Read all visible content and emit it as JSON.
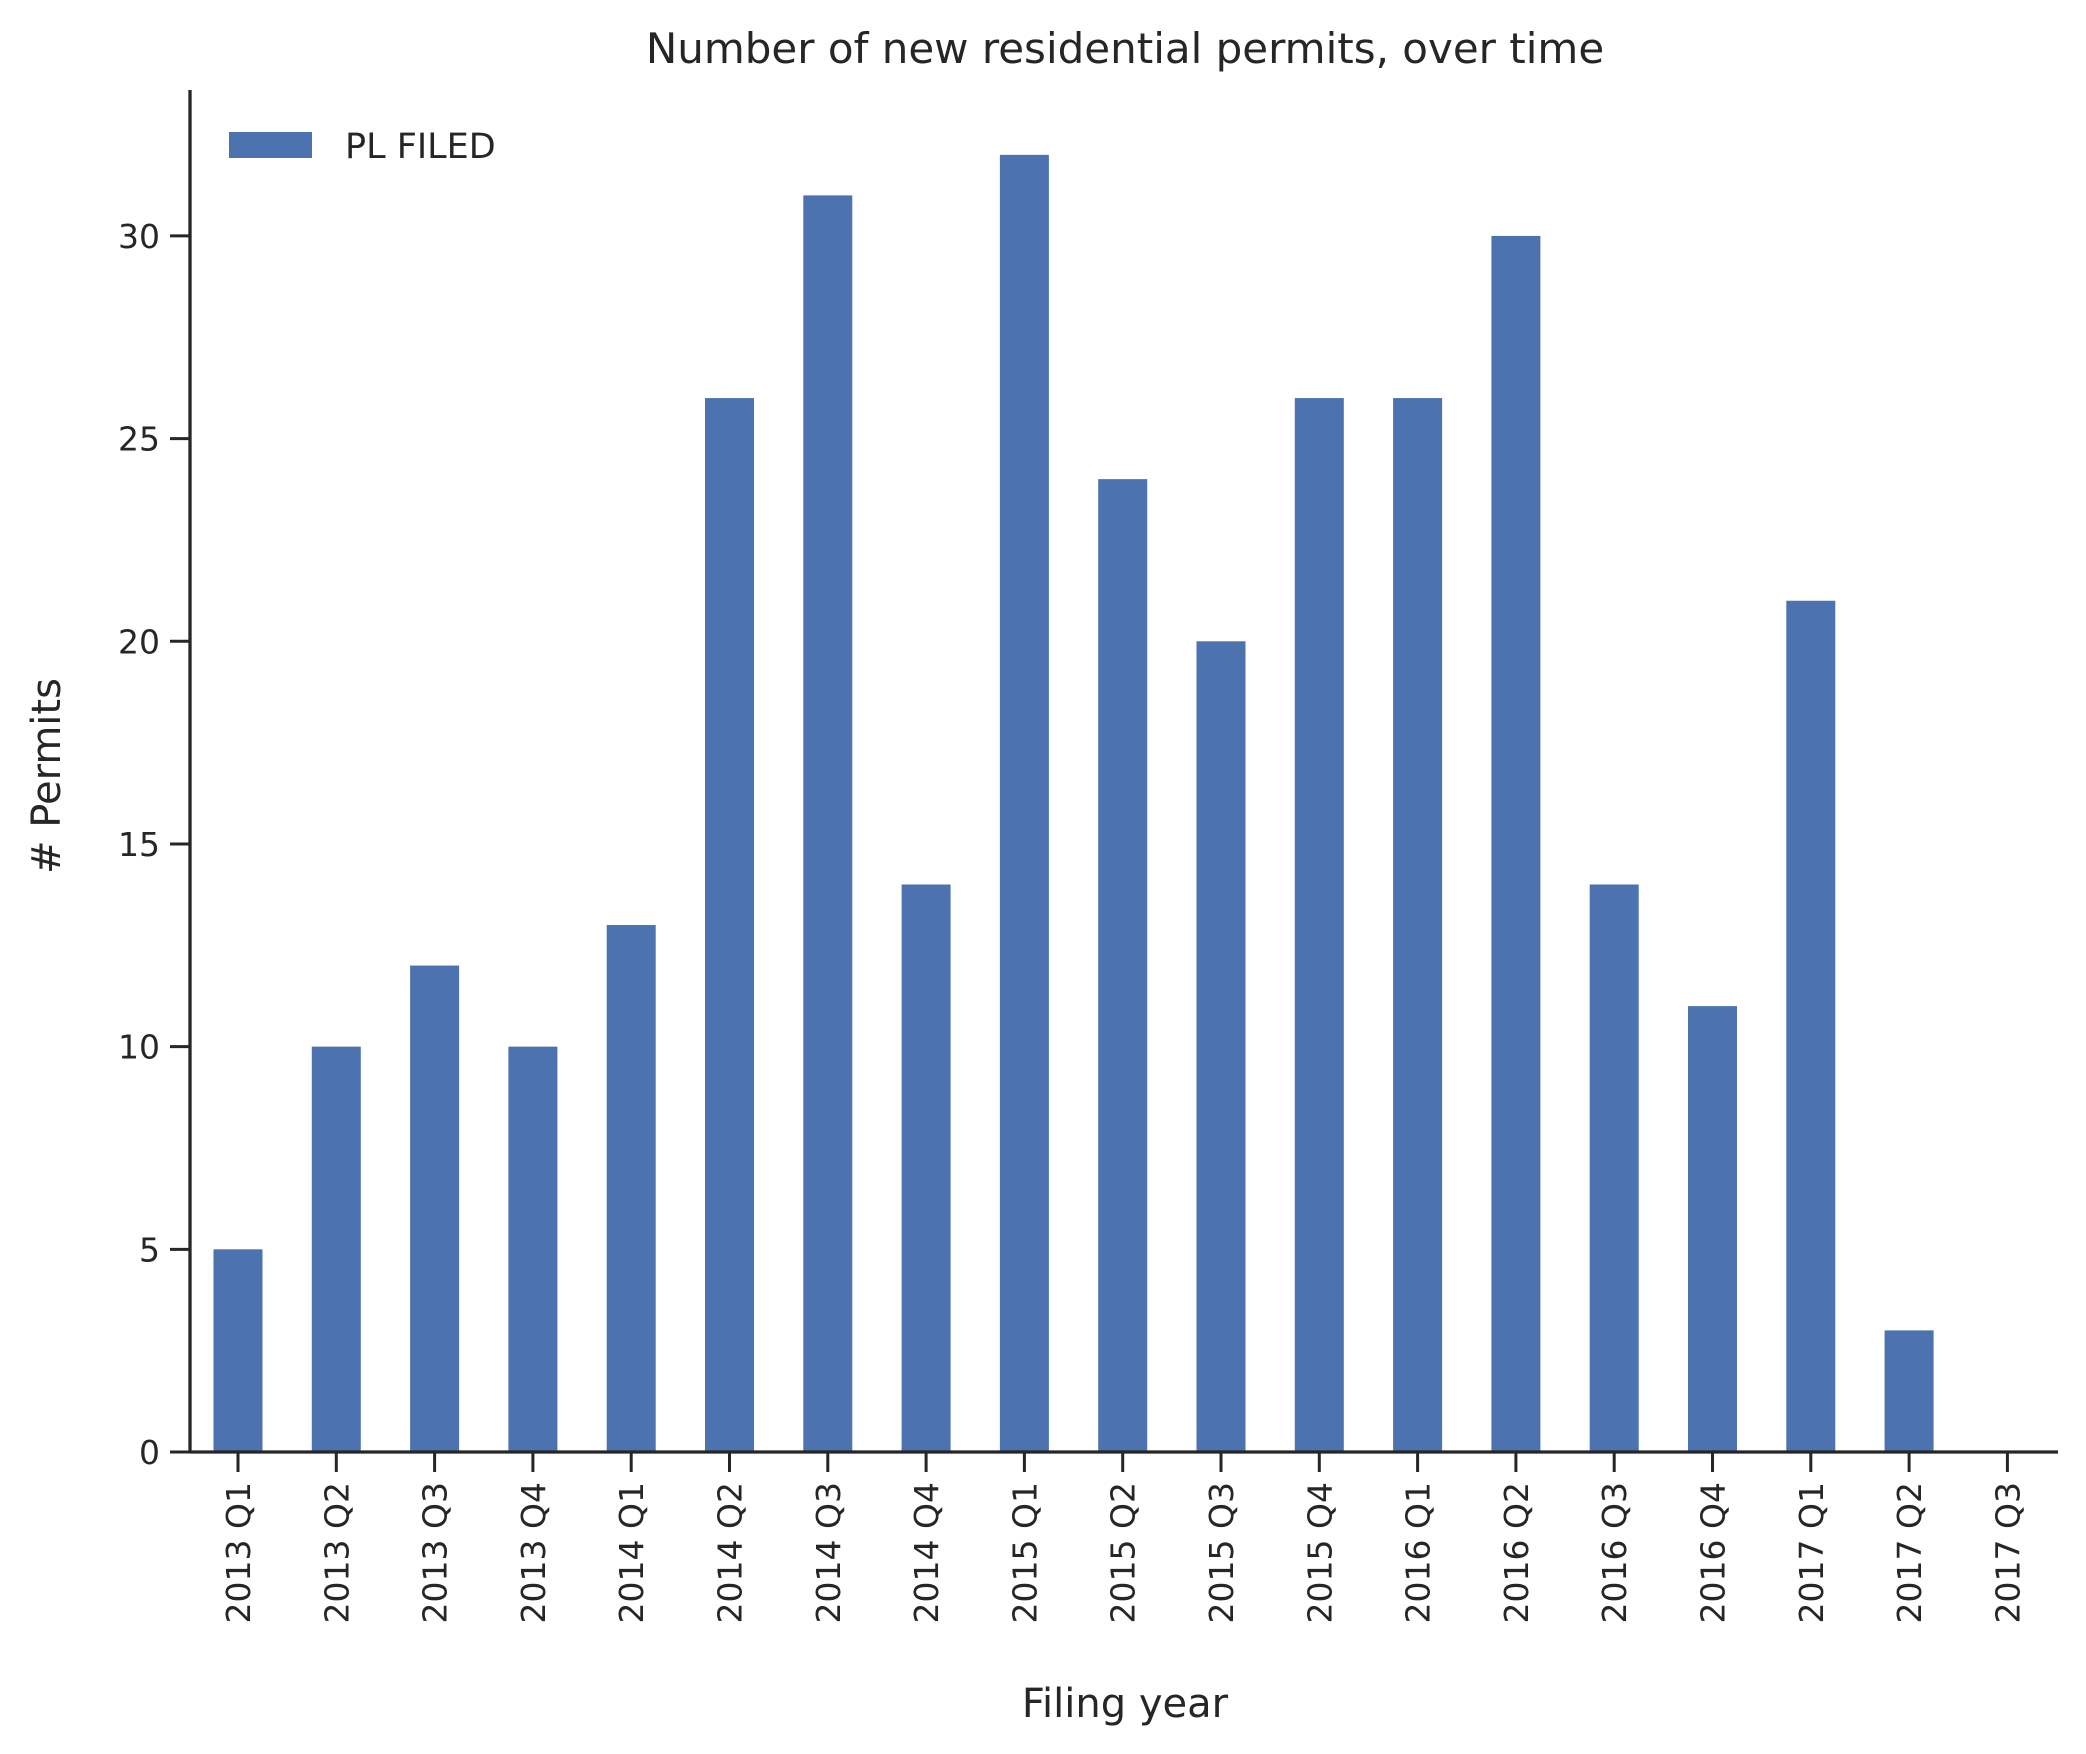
{
  "chart_data": {
    "type": "bar",
    "title": "Number of new residential permits, over time",
    "xlabel": "Filing year",
    "ylabel": "# Permits",
    "categories": [
      "2013 Q1",
      "2013 Q2",
      "2013 Q3",
      "2013 Q4",
      "2014 Q1",
      "2014 Q2",
      "2014 Q3",
      "2014 Q4",
      "2015 Q1",
      "2015 Q2",
      "2015 Q3",
      "2015 Q4",
      "2016 Q1",
      "2016 Q2",
      "2016 Q3",
      "2016 Q4",
      "2017 Q1",
      "2017 Q2",
      "2017 Q3"
    ],
    "series": [
      {
        "name": "PL FILED",
        "color": "#4c72b0",
        "values": [
          5,
          10,
          12,
          10,
          13,
          26,
          31,
          14,
          32,
          24,
          20,
          26,
          26,
          30,
          14,
          11,
          21,
          3,
          0
        ]
      }
    ],
    "ylim": [
      0,
      33.6
    ],
    "yticks": [
      0,
      5,
      10,
      15,
      20,
      25,
      30
    ],
    "grid": false,
    "legend_position": "top-left"
  }
}
